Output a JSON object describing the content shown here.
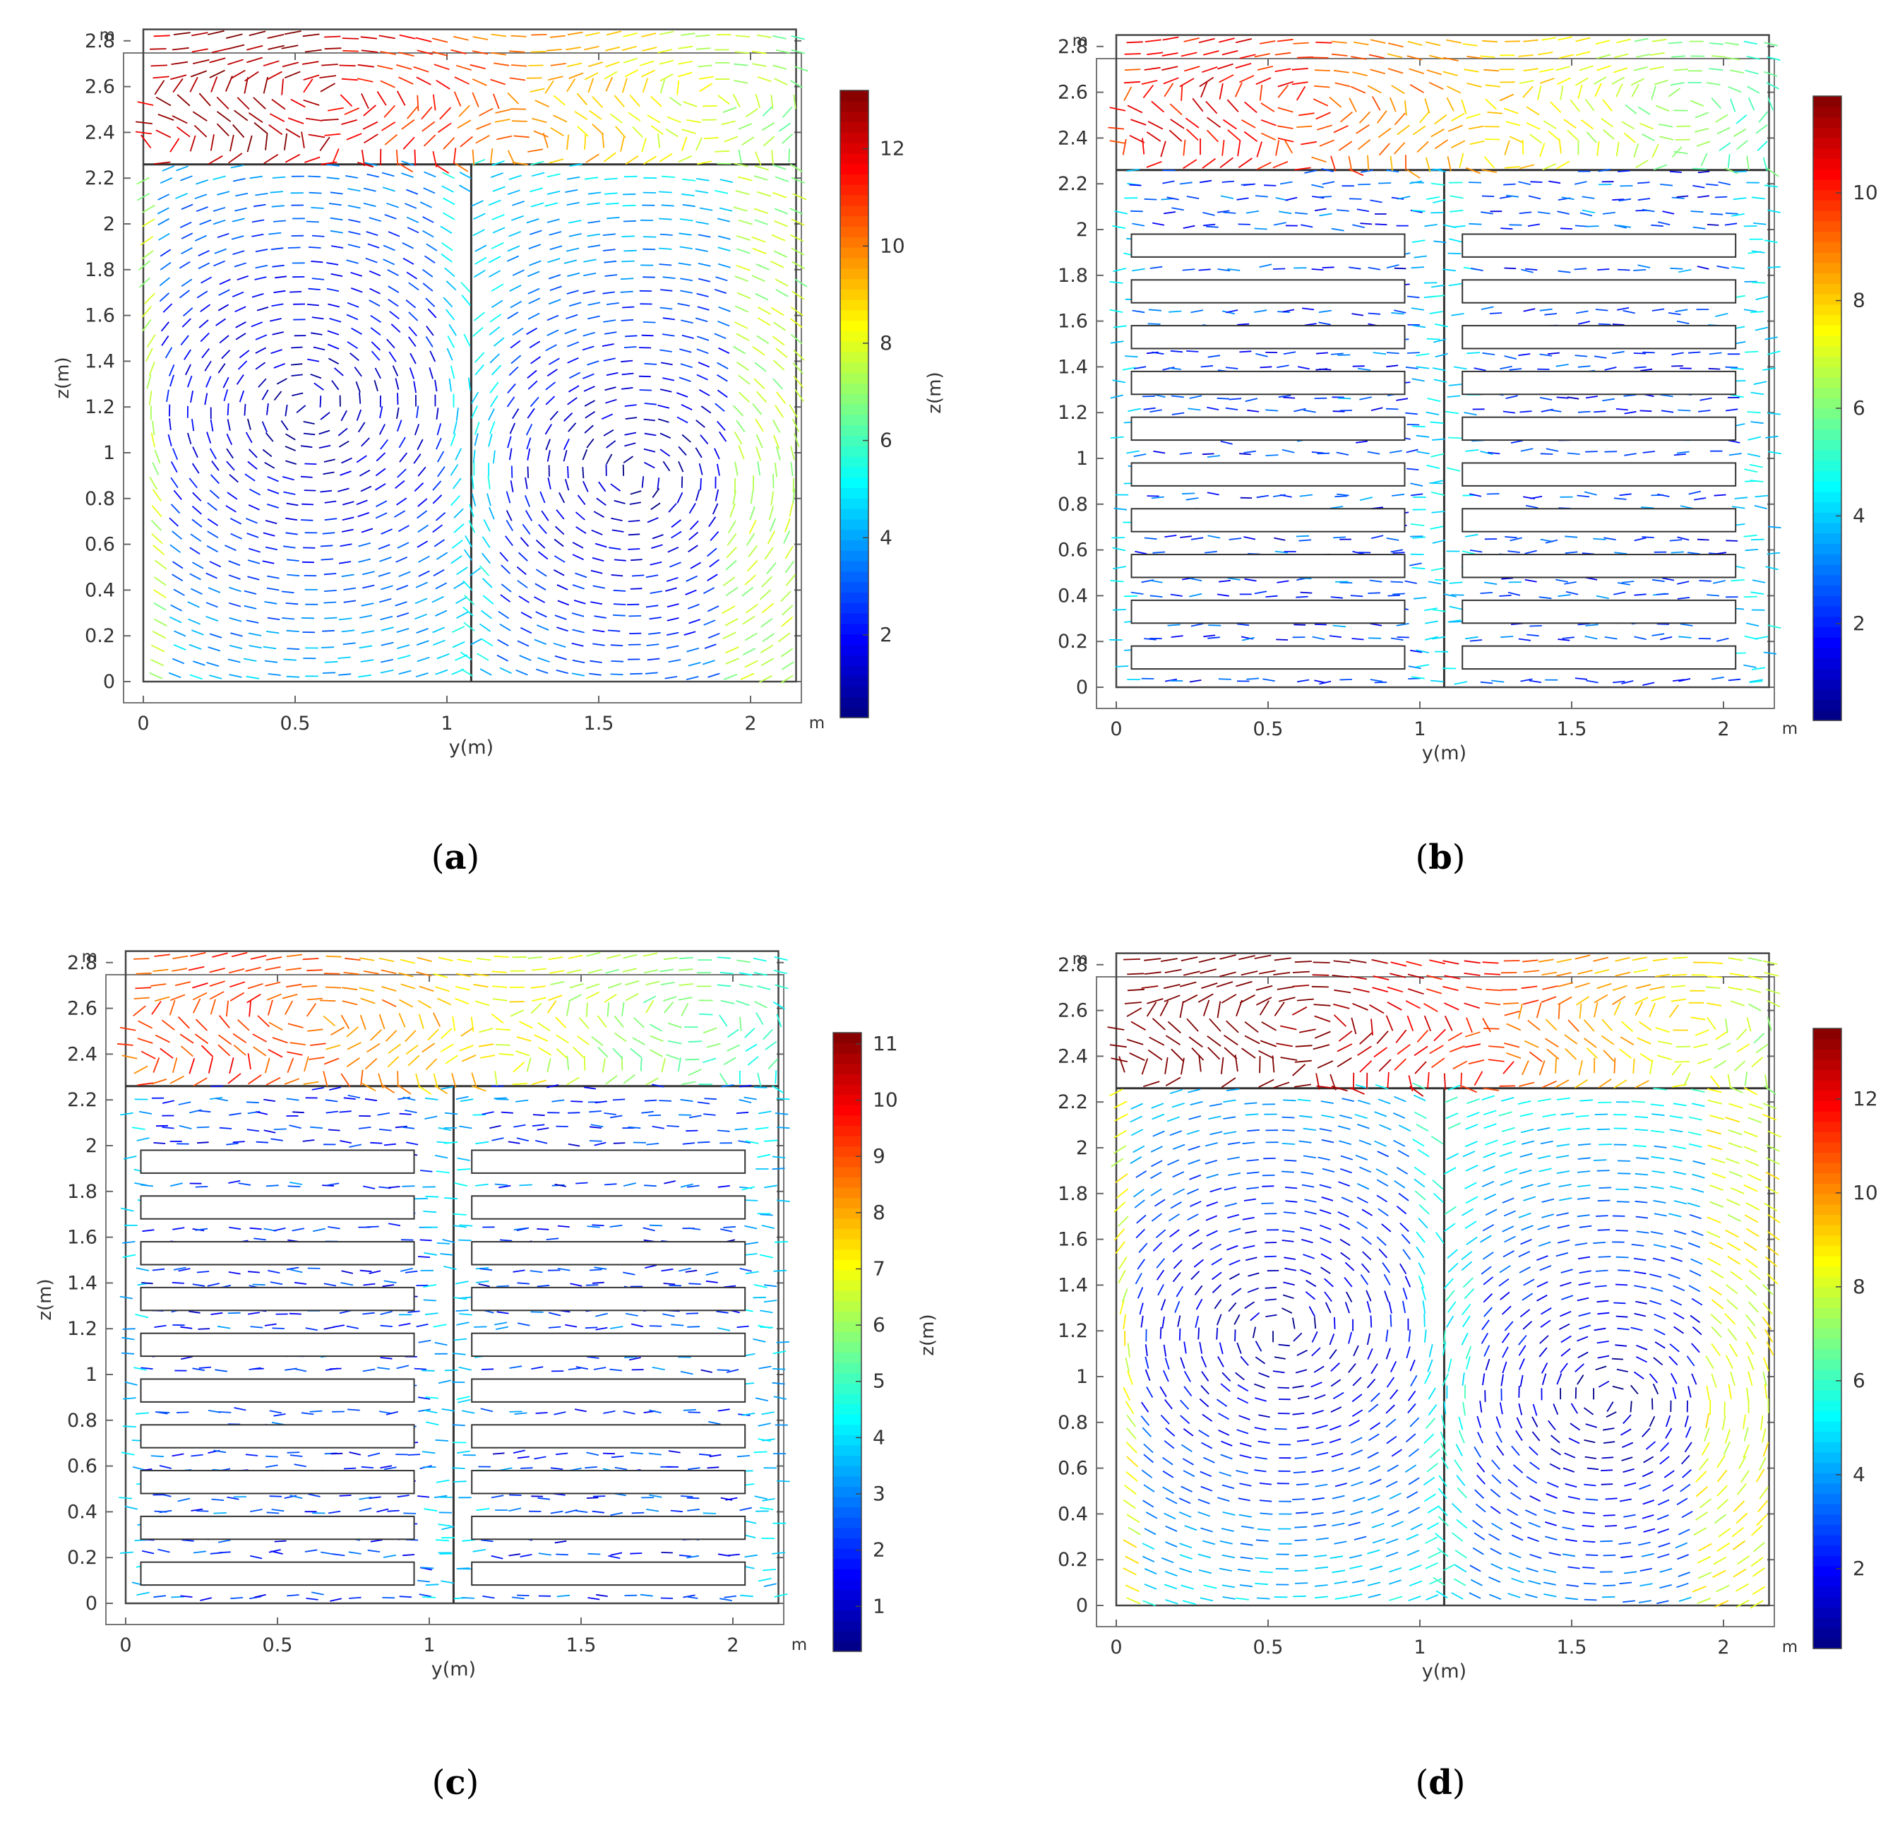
{
  "figure": {
    "panels": [
      {
        "id": "a",
        "caption": "a",
        "chart_data": {
          "type": "vector-field",
          "xlabel": "y(m)",
          "ylabel": "z(m)",
          "unit_label_x": "m",
          "unit_label_y": "m",
          "xlim": [
            0,
            2.2
          ],
          "ylim": [
            0,
            2.85
          ],
          "xticks": [
            0,
            0.5,
            1,
            1.5,
            2
          ],
          "xtick_labels": [
            "0",
            "0.5",
            "1",
            "1.5",
            "2"
          ],
          "yticks": [
            0,
            0.2,
            0.4,
            0.6,
            0.8,
            1,
            1.2,
            1.4,
            1.6,
            1.8,
            2,
            2.2,
            2.4,
            2.6,
            2.8
          ],
          "ytick_labels": [
            "0",
            "0.2",
            "0.4",
            "0.6",
            "0.8",
            "1",
            "1.2",
            "1.4",
            "1.6",
            "1.8",
            "2",
            "2.2",
            "2.4",
            "2.6",
            "2.8"
          ],
          "domain": {
            "y0": 0,
            "y1": 2.15,
            "z0": 0,
            "z1": 2.85
          },
          "divider_z": 2.26,
          "partition_y": 1.08,
          "shelves": [],
          "colorbar": {
            "label": "z(m)",
            "min": 0.3,
            "max": 13.2,
            "ticks": [
              2,
              4,
              6,
              8,
              10,
              12
            ],
            "tick_labels": [
              "2",
              "4",
              "6",
              "8",
              "10",
              "12"
            ]
          },
          "field": "twin-vortex",
          "speed_scale": 1.0
        }
      },
      {
        "id": "b",
        "caption": "b",
        "chart_data": {
          "type": "vector-field",
          "xlabel": "y(m)",
          "ylabel": "",
          "unit_label_x": "m",
          "unit_label_y": "m",
          "xlim": [
            0,
            2.2
          ],
          "ylim": [
            0,
            2.85
          ],
          "xticks": [
            0,
            0.5,
            1,
            1.5,
            2
          ],
          "xtick_labels": [
            "0",
            "0.5",
            "1",
            "1.5",
            "2"
          ],
          "yticks": [
            0,
            0.2,
            0.4,
            0.6,
            0.8,
            1,
            1.2,
            1.4,
            1.6,
            1.8,
            2,
            2.2,
            2.4,
            2.6,
            2.8
          ],
          "ytick_labels": [
            "0",
            "0.2",
            "0.4",
            "0.6",
            "0.8",
            "1",
            "1.2",
            "1.4",
            "1.6",
            "1.8",
            "2",
            "2.2",
            "2.4",
            "2.6",
            "2.8"
          ],
          "domain": {
            "y0": 0,
            "y1": 2.15,
            "z0": 0,
            "z1": 2.85
          },
          "divider_z": 2.26,
          "partition_y": 1.08,
          "shelves": {
            "left": [
              0.05,
              0.95
            ],
            "right": [
              1.14,
              2.04
            ],
            "z_bottoms": [
              0.08,
              0.28,
              0.48,
              0.68,
              0.88,
              1.08,
              1.28,
              1.48,
              1.68,
              1.88
            ],
            "height": 0.1
          },
          "colorbar": {
            "label": "",
            "min": 0.2,
            "max": 11.8,
            "ticks": [
              2,
              4,
              6,
              8,
              10
            ],
            "tick_labels": [
              "2",
              "4",
              "6",
              "8",
              "10"
            ]
          },
          "field": "channel",
          "speed_scale": 0.9
        }
      },
      {
        "id": "c",
        "caption": "c",
        "chart_data": {
          "type": "vector-field",
          "xlabel": "y(m)",
          "ylabel": "z(m)",
          "unit_label_x": "m",
          "unit_label_y": "m",
          "xlim": [
            0,
            2.2
          ],
          "ylim": [
            0,
            2.85
          ],
          "xticks": [
            0,
            0.5,
            1,
            1.5,
            2
          ],
          "xtick_labels": [
            "0",
            "0.5",
            "1",
            "1.5",
            "2"
          ],
          "yticks": [
            0,
            0.2,
            0.4,
            0.6,
            0.8,
            1,
            1.2,
            1.4,
            1.6,
            1.8,
            2,
            2.2,
            2.4,
            2.6,
            2.8
          ],
          "ytick_labels": [
            "0",
            "0.2",
            "0.4",
            "0.6",
            "0.8",
            "1",
            "1.2",
            "1.4",
            "1.6",
            "1.8",
            "2",
            "2.2",
            "2.4",
            "2.6",
            "2.8"
          ],
          "domain": {
            "y0": 0,
            "y1": 2.15,
            "z0": 0,
            "z1": 2.85
          },
          "divider_z": 2.26,
          "partition_y": 1.08,
          "shelves": {
            "left": [
              0.05,
              0.95
            ],
            "right": [
              1.14,
              2.04
            ],
            "z_bottoms": [
              0.08,
              0.28,
              0.48,
              0.68,
              0.88,
              1.08,
              1.28,
              1.48,
              1.68,
              1.88
            ],
            "height": 0.1
          },
          "colorbar": {
            "label": "z(m)",
            "min": 0.2,
            "max": 11.2,
            "ticks": [
              1,
              2,
              3,
              4,
              5,
              6,
              7,
              8,
              9,
              10,
              11
            ],
            "tick_labels": [
              "1",
              "2",
              "3",
              "4",
              "5",
              "6",
              "7",
              "8",
              "9",
              "10",
              "11"
            ]
          },
          "field": "channel",
          "speed_scale": 0.85
        }
      },
      {
        "id": "d",
        "caption": "d",
        "chart_data": {
          "type": "vector-field",
          "xlabel": "y(m)",
          "ylabel": "",
          "unit_label_x": "m",
          "unit_label_y": "m",
          "xlim": [
            0,
            2.2
          ],
          "ylim": [
            0,
            2.85
          ],
          "xticks": [
            0,
            0.5,
            1,
            1.5,
            2
          ],
          "xtick_labels": [
            "0",
            "0.5",
            "1",
            "1.5",
            "2"
          ],
          "yticks": [
            0,
            0.2,
            0.4,
            0.6,
            0.8,
            1,
            1.2,
            1.4,
            1.6,
            1.8,
            2,
            2.2,
            2.4,
            2.6,
            2.8
          ],
          "ytick_labels": [
            "0",
            "0.2",
            "0.4",
            "0.6",
            "0.8",
            "1",
            "1.2",
            "1.4",
            "1.6",
            "1.8",
            "2",
            "2.2",
            "2.4",
            "2.6",
            "2.8"
          ],
          "domain": {
            "y0": 0,
            "y1": 2.15,
            "z0": 0,
            "z1": 2.85
          },
          "divider_z": 2.26,
          "partition_y": 1.08,
          "shelves": [],
          "colorbar": {
            "label": "",
            "min": 0.3,
            "max": 13.5,
            "ticks": [
              2,
              4,
              6,
              8,
              10,
              12
            ],
            "tick_labels": [
              "2",
              "4",
              "6",
              "8",
              "10",
              "12"
            ]
          },
          "field": "twin-vortex",
          "speed_scale": 1.1
        }
      }
    ],
    "colormap": [
      "#00007f",
      "#0000ff",
      "#007fff",
      "#00ffff",
      "#7fff7f",
      "#ffff00",
      "#ff7f00",
      "#ff0000",
      "#7f0000"
    ]
  }
}
